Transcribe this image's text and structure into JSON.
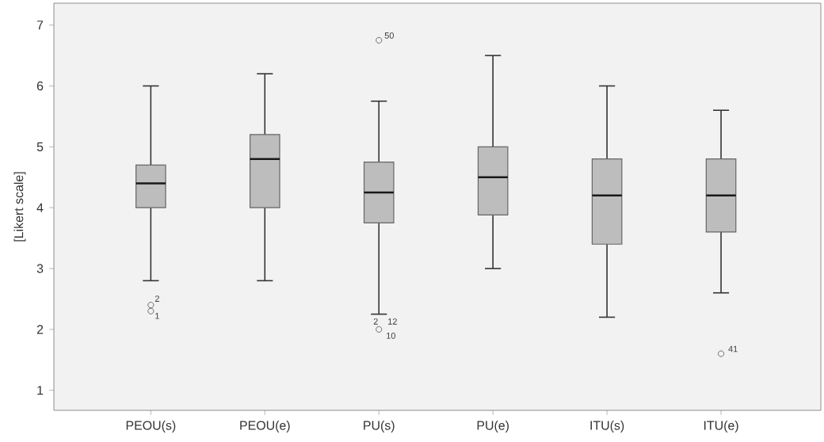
{
  "chart_data": {
    "type": "box",
    "ylabel": "[Likert scale]",
    "categories": [
      "PEOU(s)",
      "PEOU(e)",
      "PU(s)",
      "PU(e)",
      "ITU(s)",
      "ITU(e)"
    ],
    "series": [
      {
        "color": "#bdbdbd",
        "boxes": [
          {
            "low": 2.8,
            "q1": 4.0,
            "median": 4.4,
            "q3": 4.7,
            "high": 6.0,
            "outliers": [
              2.4,
              2.3
            ]
          },
          {
            "low": 2.8,
            "q1": 4.0,
            "median": 4.8,
            "q3": 5.2,
            "high": 6.2
          },
          {
            "low": 2.25,
            "q1": 3.75,
            "median": 4.25,
            "q3": 4.75,
            "high": 5.75,
            "outliers": [
              6.75,
              2.0
            ]
          },
          {
            "low": 3.0,
            "q1": 3.88,
            "median": 4.5,
            "q3": 5.0,
            "high": 6.5
          },
          {
            "low": 2.2,
            "q1": 3.4,
            "median": 4.2,
            "q3": 4.8,
            "high": 6.0
          },
          {
            "low": 2.6,
            "q1": 3.6,
            "median": 4.2,
            "q3": 4.8,
            "high": 5.6,
            "outliers": [
              1.6
            ]
          }
        ]
      }
    ],
    "ylim": [
      0.67,
      7.36
    ],
    "yticks": [
      1,
      2,
      3,
      4,
      5,
      6,
      7
    ],
    "annotations": [
      "2",
      "1",
      "50",
      "2",
      "12",
      "10",
      "41"
    ]
  }
}
